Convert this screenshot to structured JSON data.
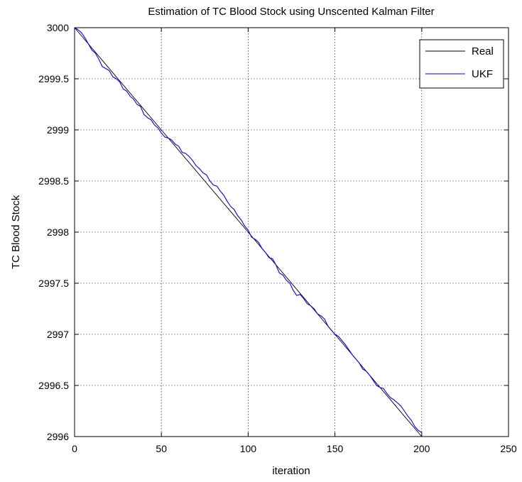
{
  "chart_data": {
    "type": "line",
    "title": "Estimation of TC Blood Stock using Unscented Kalman Filter",
    "xlabel": "iteration",
    "ylabel": "TC Blood Stock",
    "xlim": [
      0,
      250
    ],
    "ylim": [
      2996,
      3000
    ],
    "xticks": [
      0,
      50,
      100,
      150,
      200,
      250
    ],
    "yticks": [
      2996,
      2996.5,
      2997,
      2997.5,
      2998,
      2998.5,
      2999,
      2999.5,
      3000
    ],
    "grid": true,
    "legend_position": "top-right",
    "colors": {
      "real": "#000000",
      "ukf": "#0000ff",
      "grid": "#000000"
    },
    "series": [
      {
        "name": "Real",
        "x": [
          0,
          10,
          20,
          30,
          40,
          50,
          60,
          70,
          80,
          90,
          100,
          110,
          120,
          130,
          140,
          150,
          160,
          170,
          180,
          190,
          200
        ],
        "y": [
          3000.0,
          2999.8,
          2999.6,
          2999.4,
          2999.2,
          2999.0,
          2998.8,
          2998.6,
          2998.4,
          2998.2,
          2998.0,
          2997.8,
          2997.6,
          2997.4,
          2997.2,
          2997.0,
          2996.8,
          2996.6,
          2996.4,
          2996.2,
          2996.0
        ]
      },
      {
        "name": "UKF",
        "x": [
          0,
          2,
          4,
          6,
          8,
          10,
          12,
          14,
          16,
          18,
          20,
          22,
          24,
          26,
          28,
          30,
          32,
          34,
          36,
          38,
          40,
          42,
          44,
          46,
          48,
          50,
          52,
          54,
          56,
          58,
          60,
          62,
          64,
          66,
          68,
          70,
          72,
          74,
          76,
          78,
          80,
          82,
          84,
          86,
          88,
          90,
          92,
          94,
          96,
          98,
          100,
          102,
          104,
          106,
          108,
          110,
          112,
          114,
          116,
          118,
          120,
          122,
          124,
          126,
          128,
          130,
          132,
          134,
          136,
          138,
          140,
          142,
          144,
          146,
          148,
          150,
          152,
          154,
          156,
          158,
          160,
          162,
          164,
          166,
          168,
          170,
          172,
          174,
          176,
          178,
          180,
          182,
          184,
          186,
          188,
          190,
          192,
          194,
          196,
          198,
          200
        ],
        "y": [
          3000.0,
          2999.98,
          2999.95,
          2999.9,
          2999.84,
          2999.78,
          2999.75,
          2999.69,
          2999.62,
          2999.6,
          2999.58,
          2999.52,
          2999.5,
          2999.47,
          2999.4,
          2999.38,
          2999.33,
          2999.3,
          2999.25,
          2999.23,
          2999.15,
          2999.12,
          2999.1,
          2999.05,
          2999.02,
          2998.97,
          2998.93,
          2998.92,
          2998.9,
          2998.86,
          2998.84,
          2998.78,
          2998.77,
          2998.74,
          2998.7,
          2998.65,
          2998.62,
          2998.58,
          2998.56,
          2998.5,
          2998.46,
          2998.45,
          2998.4,
          2998.36,
          2998.3,
          2998.25,
          2998.22,
          2998.16,
          2998.12,
          2998.06,
          2998.02,
          2997.95,
          2997.93,
          2997.9,
          2997.84,
          2997.8,
          2997.75,
          2997.74,
          2997.68,
          2997.6,
          2997.58,
          2997.53,
          2997.5,
          2997.43,
          2997.38,
          2997.39,
          2997.35,
          2997.3,
          2997.28,
          2997.25,
          2997.2,
          2997.18,
          2997.15,
          2997.08,
          2997.04,
          2997.0,
          2996.98,
          2996.94,
          2996.9,
          2996.85,
          2996.8,
          2996.76,
          2996.72,
          2996.66,
          2996.64,
          2996.6,
          2996.55,
          2996.5,
          2996.48,
          2996.47,
          2996.42,
          2996.38,
          2996.36,
          2996.33,
          2996.3,
          2996.25,
          2996.2,
          2996.16,
          2996.1,
          2996.06,
          2996.04
        ]
      }
    ]
  }
}
